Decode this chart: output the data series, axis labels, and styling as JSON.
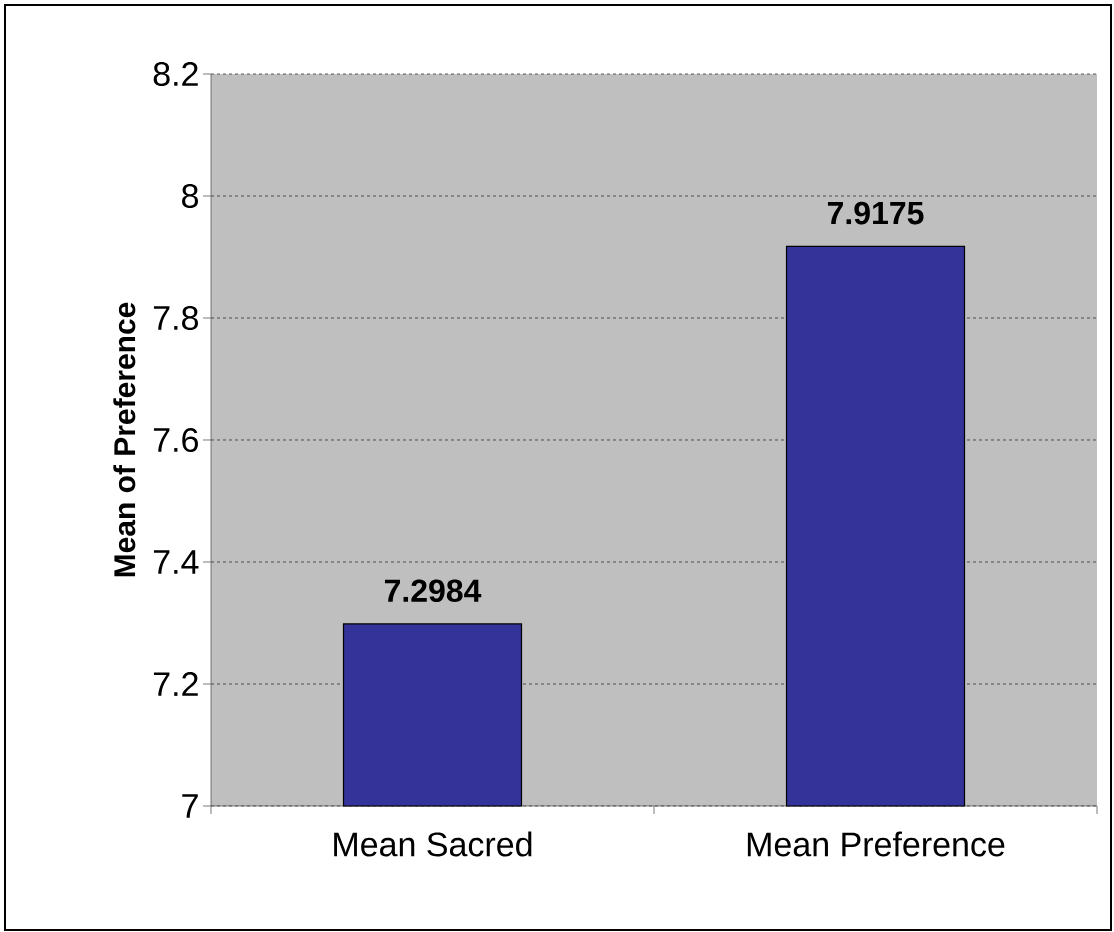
{
  "chart_data": {
    "type": "bar",
    "ylabel": "Mean of Preference",
    "categories": [
      "Mean Sacred",
      "Mean Preference"
    ],
    "values": [
      7.2984,
      7.9175
    ],
    "color": "#333399",
    "ylim": [
      7,
      8.2
    ],
    "yticks": [
      7,
      7.2,
      7.4,
      7.6,
      7.8,
      8,
      8.2
    ],
    "grid": "y",
    "data_labels": true,
    "line_style": "dashed"
  }
}
